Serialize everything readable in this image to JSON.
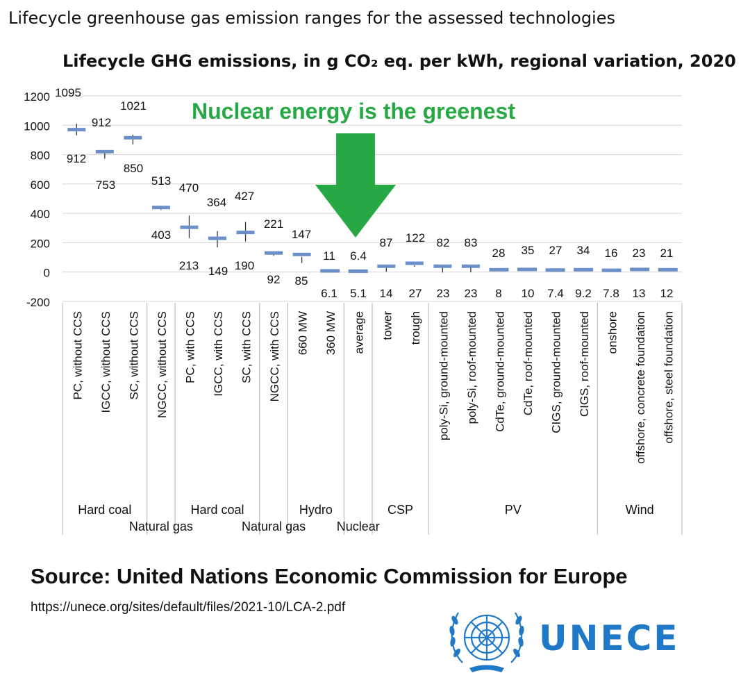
{
  "page_title": "Lifecycle greenhouse gas emission ranges for the assessed technologies",
  "callout": {
    "text": "Nuclear energy is the greenest",
    "color": "#27a844",
    "arrow": "down-arrow-icon",
    "arrow_color": "#27a844"
  },
  "chart_data": {
    "type": "box-range",
    "title": "Lifecycle GHG emissions, in g CO₂ eq. per kWh, regional variation, 2020",
    "xlabel": "",
    "ylabel": "",
    "ylim": [
      -200,
      1200
    ],
    "yticks": [
      1200,
      1000,
      800,
      600,
      400,
      200,
      0,
      -200
    ],
    "grid": true,
    "marker_color": "#6b8fc8",
    "categories": [
      "PC, without CCS",
      "IGCC, without CCS",
      "SC, without CCS",
      "NGCC, without CCS",
      "PC, with CCS",
      "IGCC, with CCS",
      "SC, with CCS",
      "NGCC, with CCS",
      "660 MW",
      "360 MW",
      "average",
      "tower",
      "trough",
      "poly-Si, ground-mounted",
      "poly-Si, roof-mounted",
      "CdTe, ground-mounted",
      "CdTe, roof-mounted",
      "CIGS, ground-mounted",
      "CIGS, roof-mounted",
      "onshore",
      "offshore, concrete foundation",
      "offshore, steel foundation"
    ],
    "max_labels": [
      "1095",
      "912",
      "1021",
      "513",
      "470",
      "364",
      "427",
      "221",
      "147",
      "11",
      "6.4",
      "87",
      "122",
      "82",
      "83",
      "28",
      "35",
      "27",
      "34",
      "16",
      "23",
      "21"
    ],
    "min_labels": [
      "912",
      "753",
      "850",
      "403",
      "213",
      "149",
      "190",
      "92",
      "85",
      "6.1",
      "5.1",
      "14",
      "27",
      "23",
      "23",
      "8",
      "10",
      "7.4",
      "9.2",
      "7.8",
      "13",
      "12"
    ],
    "max": [
      1095,
      912,
      1021,
      513,
      470,
      364,
      427,
      221,
      147,
      11,
      6.4,
      87,
      122,
      82,
      83,
      28,
      35,
      27,
      34,
      16,
      23,
      21
    ],
    "min": [
      912,
      753,
      850,
      403,
      213,
      149,
      190,
      92,
      85,
      6.1,
      5.1,
      14,
      27,
      23,
      23,
      8,
      10,
      7.4,
      9.2,
      7.8,
      13,
      12
    ],
    "mid": [
      970,
      820,
      915,
      440,
      305,
      230,
      270,
      130,
      120,
      8,
      6,
      40,
      60,
      40,
      40,
      16,
      18,
      14,
      16,
      12,
      18,
      16
    ],
    "groups": [
      {
        "name": "Hard coal",
        "row": 1,
        "start": 0,
        "end": 2
      },
      {
        "name": "Natural gas",
        "row": 2,
        "start": 3,
        "end": 3
      },
      {
        "name": "Hard coal",
        "row": 1,
        "start": 4,
        "end": 6
      },
      {
        "name": "Natural gas",
        "row": 2,
        "start": 7,
        "end": 7
      },
      {
        "name": "Hydro",
        "row": 1,
        "start": 8,
        "end": 9
      },
      {
        "name": "Nuclear",
        "row": 2,
        "start": 10,
        "end": 10
      },
      {
        "name": "CSP",
        "row": 1,
        "start": 11,
        "end": 12
      },
      {
        "name": "PV",
        "row": 1,
        "start": 13,
        "end": 18
      },
      {
        "name": "Wind",
        "row": 1,
        "start": 19,
        "end": 21
      }
    ]
  },
  "source": {
    "text": "Source: United Nations Economic Commission for Europe",
    "url": "https://unece.org/sites/default/files/2021-10/LCA-2.pdf"
  },
  "logo": {
    "text": "UNECE",
    "color": "#2079c7",
    "icon": "un-emblem-icon"
  }
}
